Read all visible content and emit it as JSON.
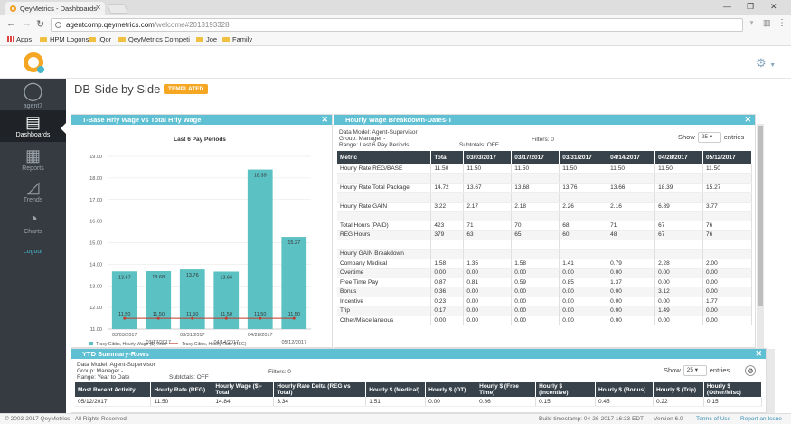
{
  "browser": {
    "tab_title": "QeyMetrics - Dashboards",
    "url_host": "agentcomp.qeymetrics.com",
    "url_path": "/welcome#2013193328",
    "bookmarks": [
      "Apps",
      "HPM Logons",
      "iQor",
      "QeyMetrics Competi",
      "Joe",
      "Family"
    ]
  },
  "sidebar": {
    "user": "agent7",
    "items": [
      {
        "label": "Dashboards",
        "icon": "dashboard-icon"
      },
      {
        "label": "Reports",
        "icon": "reports-icon"
      },
      {
        "label": "Trends",
        "icon": "trends-icon"
      },
      {
        "label": "Charts",
        "icon": "pie-chart-icon"
      }
    ],
    "logout": "Logout"
  },
  "page": {
    "title": "DB-Side by Side",
    "tag": "TEMPLATED"
  },
  "chart_panel": {
    "title": "T-Base Hrly Wage vs Total Hrly Wage",
    "legend": [
      "Tracy Gibbs, Hourly Wage ($)-Total",
      "Tracy Gibbs, Hourly Rate (REG)"
    ]
  },
  "chart_data": {
    "type": "bar",
    "title": "Last 6 Pay Periods",
    "xlabel": "",
    "ylabel": "",
    "categories": [
      "03/03/2017",
      "03/17/2017",
      "03/31/2017",
      "04/14/2017",
      "04/28/2017",
      "05/12/2017"
    ],
    "series": [
      {
        "name": "Tracy Gibbs, Hourly Wage ($)-Total",
        "type": "bar",
        "values": [
          13.67,
          13.68,
          13.76,
          13.66,
          18.39,
          15.27
        ],
        "color": "#5cc1c3"
      },
      {
        "name": "Tracy Gibbs, Hourly Rate (REG)",
        "type": "line",
        "values": [
          11.5,
          11.5,
          11.5,
          11.5,
          11.5,
          11.5
        ],
        "color": "#c0392b"
      }
    ],
    "yticks": [
      "11.00",
      "12.00",
      "13.00",
      "14.00",
      "15.00",
      "16.00",
      "17.00",
      "18.00",
      "19.00"
    ],
    "ylim": [
      11,
      19
    ],
    "grid": true
  },
  "breakdown_panel": {
    "title": "Hourly Wage Breakdown-Dates-T",
    "meta": [
      "Data Model: Agent-Supervisor",
      "Group: Manager -",
      "Range: Last 6 Pay Periods"
    ],
    "subtotals": "Subtotals: OFF",
    "filters": "Filters: 0",
    "show": "Show",
    "show_value": "25",
    "entries": "entries",
    "columns": [
      "Metric",
      "Total",
      "03/03/2017",
      "03/17/2017",
      "03/31/2017",
      "04/14/2017",
      "04/28/2017",
      "05/12/2017"
    ],
    "rows": [
      [
        "Hourly Rate REG/BASE",
        "11.50",
        "11.50",
        "11.50",
        "11.50",
        "11.50",
        "11.50",
        "11.50"
      ],
      [
        "",
        "",
        "",
        "",
        "",
        "",
        "",
        ""
      ],
      [
        "Hourly Rate Total Package",
        "14.72",
        "13.67",
        "13.68",
        "13.76",
        "13.66",
        "18.39",
        "15.27"
      ],
      [
        "",
        "",
        "",
        "",
        "",
        "",
        "",
        ""
      ],
      [
        "Hourly Rate GAIN",
        "3.22",
        "2.17",
        "2.18",
        "2.26",
        "2.16",
        "6.89",
        "3.77"
      ],
      [
        "",
        "",
        "",
        "",
        "",
        "",
        "",
        ""
      ],
      [
        "Total Hours (PAID)",
        "423",
        "71",
        "70",
        "68",
        "71",
        "67",
        "76"
      ],
      [
        "REG Hours",
        "379",
        "63",
        "65",
        "60",
        "48",
        "67",
        "76"
      ],
      [
        "",
        "",
        "",
        "",
        "",
        "",
        "",
        ""
      ],
      [
        "Hourly GAIN Breakdown",
        "",
        "",
        "",
        "",
        "",
        "",
        ""
      ],
      [
        "Company Medical",
        "1.58",
        "1.35",
        "1.58",
        "1.41",
        "0.79",
        "2.28",
        "2.00"
      ],
      [
        "Overtime",
        "0.00",
        "0.00",
        "0.00",
        "0.00",
        "0.00",
        "0.00",
        "0.00"
      ],
      [
        "Free Time Pay",
        "0.87",
        "0.81",
        "0.59",
        "0.85",
        "1.37",
        "0.00",
        "0.00"
      ],
      [
        "Bonus",
        "0.36",
        "0.00",
        "0.00",
        "0.00",
        "0.00",
        "3.12",
        "0.00"
      ],
      [
        "Incentive",
        "0.23",
        "0.00",
        "0.00",
        "0.00",
        "0.00",
        "0.00",
        "1.77"
      ],
      [
        "Trip",
        "0.17",
        "0.00",
        "0.00",
        "0.00",
        "0.00",
        "1.49",
        "0.00"
      ],
      [
        "Other/Miscellaneous",
        "0.00",
        "0.00",
        "0.00",
        "0.00",
        "0.00",
        "0.00",
        "0.00"
      ]
    ]
  },
  "ytd_panel": {
    "title": "YTD Summary-Rows",
    "meta": [
      "Data Model: Agent-Supervisor",
      "Group: Manager -",
      "Range: Year to Date"
    ],
    "subtotals": "Subtotals: OFF",
    "filters": "Filters: 0",
    "show": "Show",
    "show_value": "25",
    "entries": "entries",
    "columns": [
      "Most Recent Activity",
      "Hourly Rate (REG)",
      "Hourly Wage ($)-Total",
      "Hourly Rate Delta (REG vs Total)",
      "Hourly $ (Medical)",
      "Hourly $ (OT)",
      "Hourly $ (Free Time)",
      "Hourly $ (Incentive)",
      "Hourly $ (Bonus)",
      "Hourly $ (Trip)",
      "Hourly $ (Other/Misc)"
    ],
    "rows": [
      [
        "05/12/2017",
        "11.50",
        "14.84",
        "3.34",
        "1.51",
        "0.00",
        "0.86",
        "0.15",
        "0.45",
        "0.22",
        "0.15"
      ]
    ]
  },
  "footer": {
    "copyright": "© 2003-2017 QeyMetrics - All Rights Reserved.",
    "build": "Build timestamp: 04-26-2017 16:33 EDT",
    "version": "Version 6.0",
    "terms": "Terms of Use",
    "report": "Report an Issue"
  }
}
